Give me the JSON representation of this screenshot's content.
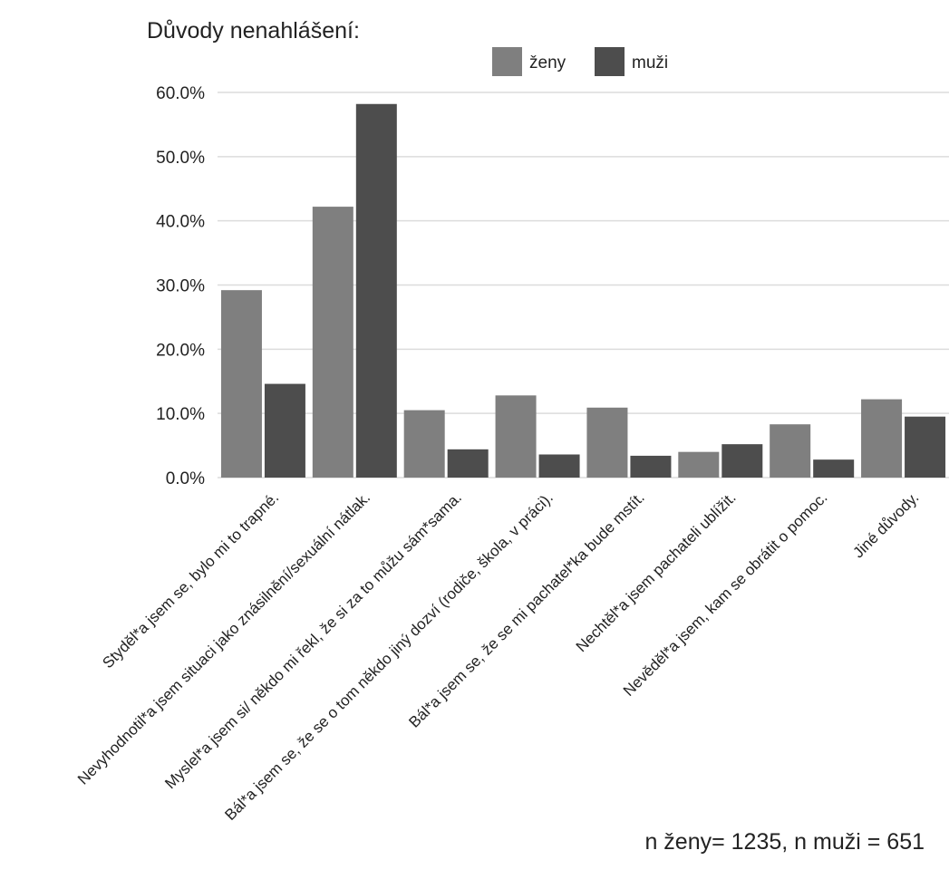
{
  "chart_data": {
    "type": "bar",
    "title": "Důvody nenahlášení:",
    "categories": [
      "Styděl*a jsem se, bylo mi to trapné.",
      "Nevyhodnotil*a jsem situaci jako znásilnění/sexuální nátlak.",
      "Myslel*a jsem si/ někdo mi řekl, že si za to můžu sám*sama.",
      "Bál*a jsem se, že se o tom někdo jiný dozví (rodiče, škola, v práci).",
      "Bál*a jsem se, že se mi pachatel*ka bude mstít.",
      "Nechtěl*a jsem pachateli ublížit.",
      "Nevěděl*a jsem, kam se obrátit o pomoc.",
      "Jiné důvody."
    ],
    "series": [
      {
        "name": "ženy",
        "color": "#7f7f7f",
        "values": [
          29.2,
          42.2,
          10.5,
          12.8,
          10.9,
          4.0,
          8.3,
          12.2
        ]
      },
      {
        "name": "muži",
        "color": "#4d4d4d",
        "values": [
          14.6,
          58.2,
          4.4,
          3.6,
          3.4,
          5.2,
          2.8,
          9.5
        ]
      }
    ],
    "ylim": [
      0,
      60
    ],
    "yticks": [
      "0.0%",
      "10.0%",
      "20.0%",
      "30.0%",
      "40.0%",
      "50.0%",
      "60.0%"
    ],
    "ytick_values": [
      0,
      10,
      20,
      30,
      40,
      50,
      60
    ],
    "grid": true,
    "legend_position": "top"
  },
  "note": "n ženy= 1235, n muži = 651"
}
